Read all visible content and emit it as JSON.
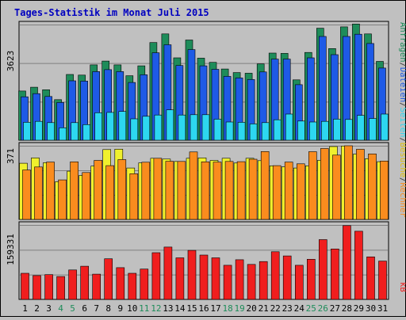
{
  "chart_data": {
    "type": "bar",
    "title": "Tages-Statistik im Monat Juli 2015",
    "categories": [
      "1",
      "2",
      "3",
      "4",
      "5",
      "6",
      "7",
      "8",
      "9",
      "10",
      "11",
      "12",
      "13",
      "14",
      "15",
      "16",
      "17",
      "18",
      "19",
      "20",
      "21",
      "22",
      "23",
      "24",
      "25",
      "26",
      "27",
      "28",
      "29",
      "30",
      "31"
    ],
    "weekend_days": [
      "4",
      "5",
      "11",
      "12",
      "18",
      "19",
      "25",
      "26"
    ],
    "panels": [
      {
        "max_label": "3623",
        "ylim": [
          0,
          3623
        ],
        "series": [
          {
            "name": "Anfragen",
            "color": "#1E8C5A",
            "values": [
              1540,
              1660,
              1580,
              1270,
              2060,
              2040,
              2360,
              2480,
              2360,
              2020,
              2330,
              3060,
              3330,
              2580,
              3140,
              2570,
              2440,
              2230,
              2120,
              2100,
              2390,
              2730,
              2720,
              1890,
              2750,
              3510,
              2870,
              3550,
              3640,
              3330,
              2470
            ]
          },
          {
            "name": "Dateien",
            "color": "#1E5AE6",
            "values": [
              1360,
              1460,
              1370,
              1180,
              1860,
              1850,
              2150,
              2210,
              2150,
              1810,
              2050,
              2740,
              2990,
              2340,
              2840,
              2330,
              2220,
              2000,
              1950,
              1900,
              2140,
              2540,
              2540,
              1740,
              2580,
              3250,
              2680,
              3250,
              3320,
              3030,
              2260
            ]
          },
          {
            "name": "Seiten",
            "color": "#2DD7F0",
            "values": [
              560,
              590,
              550,
              390,
              550,
              490,
              860,
              870,
              900,
              670,
              750,
              790,
              950,
              790,
              800,
              800,
              660,
              570,
              560,
              510,
              550,
              640,
              820,
              600,
              570,
              590,
              660,
              650,
              780,
              680,
              820
            ]
          }
        ]
      },
      {
        "max_label": "371",
        "ylim": [
          0,
          371
        ],
        "series": [
          {
            "name": "Besuche",
            "color": "#F0F02D",
            "values": [
              283,
              310,
              286,
              190,
              243,
              222,
              269,
              352,
              354,
              259,
              285,
              308,
              304,
              292,
              308,
              310,
              297,
              308,
              284,
              308,
              296,
              270,
              265,
              259,
              270,
              297,
              367,
              370,
              329,
              306,
              291
            ]
          },
          {
            "name": "Rechner",
            "color": "#FA8C1E",
            "values": [
              249,
              264,
              289,
              199,
              290,
              236,
              297,
              271,
              301,
              230,
              288,
              308,
              293,
              292,
              340,
              290,
              289,
              292,
              291,
              303,
              342,
              271,
              289,
              280,
              341,
              357,
              324,
              371,
              353,
              330,
              294
            ]
          }
        ]
      },
      {
        "max_label": "159331",
        "ylim": [
          0,
          159331
        ],
        "series": [
          {
            "name": "kB",
            "color": "#F01E1E",
            "values": [
              56000,
              51000,
              53000,
              49000,
              63000,
              71000,
              54000,
              87000,
              68000,
              56000,
              65000,
              100000,
              112000,
              89000,
              105000,
              95000,
              89000,
              73000,
              85000,
              75000,
              81000,
              102000,
              93000,
              73000,
              86000,
              128000,
              108000,
              158000,
              146000,
              91000,
              82000
            ]
          }
        ]
      }
    ],
    "right_legends": [
      [
        {
          "text": "Anfragen",
          "color": "#1E8C5A"
        },
        {
          "text": "/",
          "color": "#404040"
        },
        {
          "text": "Dateien",
          "color": "#1E5AE6"
        },
        {
          "text": "/",
          "color": "#404040"
        },
        {
          "text": "Seiten",
          "color": "#2DD7F0"
        },
        {
          "text": "/",
          "color": "#404040"
        },
        {
          "text": "Besuche",
          "color": "#E0C010"
        },
        {
          "text": "/",
          "color": "#404040"
        },
        {
          "text": "Rechner",
          "color": "#FA8C1E"
        }
      ],
      [
        {
          "text": "kB",
          "color": "#F01E1E"
        }
      ]
    ],
    "colors": {
      "title": "#0000C0",
      "weekday_label": "#000000",
      "weekend_label": "#1E8C5A",
      "panel_bg": "#C0C0C0",
      "gridline": "#808080",
      "border": "#000000"
    },
    "grid": true
  }
}
